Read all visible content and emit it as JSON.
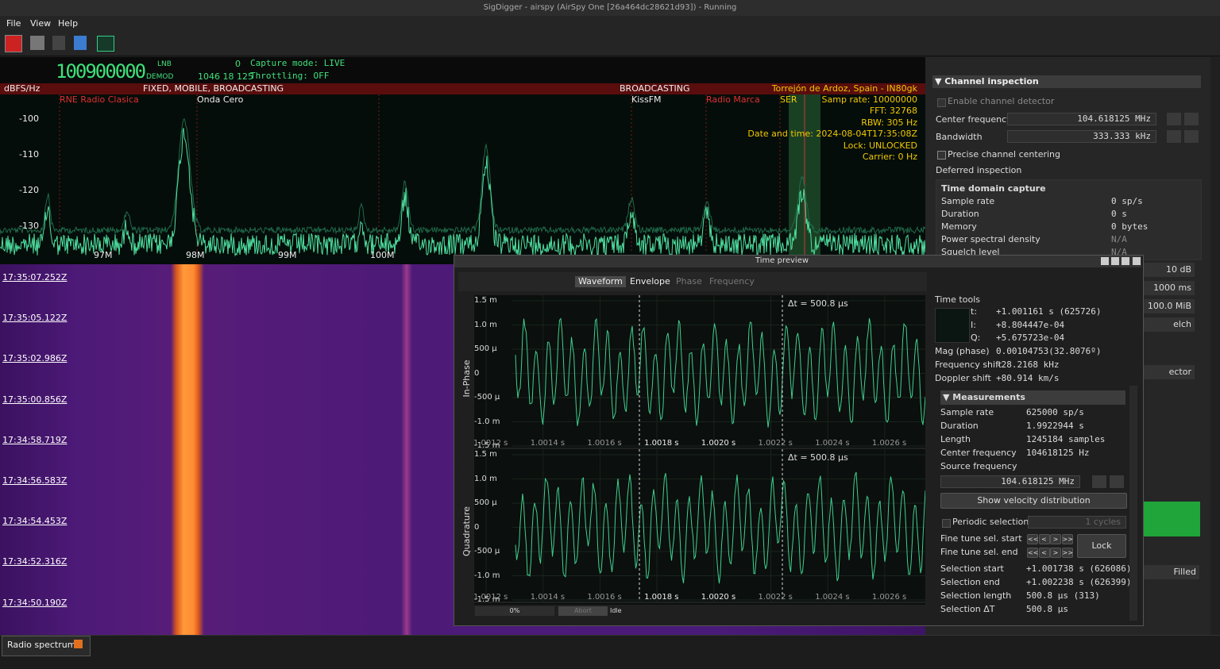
{
  "window": {
    "title": "SigDigger - airspy (AirSpy One [26a464dc28621d93]) - Running"
  },
  "menu": [
    "File",
    "View",
    "Help"
  ],
  "receiver": {
    "frequency": "100900000",
    "lnb_label": "LNB",
    "lnb_value": "0",
    "demod_label": "DEMOD",
    "demod_value": "1046 18 125",
    "capture_mode": "Capture mode: LIVE",
    "throttling": "Throttling: OFF"
  },
  "spectrum": {
    "y_unit": "dBFS/Hz",
    "yticks": [
      "-100",
      "-110",
      "-120",
      "-130"
    ],
    "xticks": [
      "97M",
      "98M",
      "99M",
      "100M"
    ],
    "bands": [
      "FIXED, MOBILE, BROADCASTING",
      "BROADCASTING"
    ],
    "stations": [
      "RNE Radio Clasica",
      "Onda Cero",
      "KissFM",
      "Radio Marca",
      "SER"
    ],
    "info": [
      "Torrejón de Ardoz, Spain - IN80gk",
      "Samp rate: 10000000",
      "FFT: 32768",
      "RBW: 305 Hz",
      "Date and time: 2024-08-04T17:35:08Z",
      "Lock: UNLOCKED",
      "Carrier: 0 Hz"
    ]
  },
  "waterfall": {
    "timestamps": [
      "17:35:07.252Z",
      "17:35:05.122Z",
      "17:35:02.986Z",
      "17:35:00.856Z",
      "17:34:58.719Z",
      "17:34:56.583Z",
      "17:34:54.453Z",
      "17:34:52.316Z",
      "17:34:50.190Z"
    ]
  },
  "channel_inspection": {
    "title": "▼ Channel inspection",
    "enable_detector": "Enable channel detector",
    "center_frequency_label": "Center frequency",
    "center_frequency": "104.618125 MHz",
    "bandwidth_label": "Bandwidth",
    "bandwidth": "333.333 kHz",
    "precise_centering": "Precise channel centering",
    "deferred": "Deferred inspection",
    "capture": {
      "title": "Time domain capture",
      "rows": [
        [
          "Sample rate",
          "0 sp/s"
        ],
        [
          "Duration",
          "0 s"
        ],
        [
          "Memory",
          "0 bytes"
        ],
        [
          "Power spectral density",
          "N/A"
        ],
        [
          "Squelch level",
          "N/A"
        ]
      ]
    },
    "hidden_widgets": [
      "10 dB",
      "1000 ms",
      "100.0 MiB",
      "elch",
      "ector",
      "Filled"
    ]
  },
  "time_preview": {
    "title": "Time preview",
    "tabs": [
      "Waveform",
      "Envelope",
      "Phase",
      "Frequency"
    ],
    "plots": [
      "In-Phase",
      "Quadrature"
    ],
    "yticks": [
      "1.5 m",
      "1.0 m",
      "500 µ",
      "0",
      "-500 µ",
      "-1.0 m",
      "-1.5 m"
    ],
    "xticks": [
      "1.0012 s",
      "1.0014 s",
      "1.0016 s",
      "1.0018 s",
      "1.0020 s",
      "1.0022 s",
      "1.0024 s",
      "1.0026 s"
    ],
    "delta": "Δt = 500.8 µs",
    "progress": "0%",
    "abort": "Abort",
    "status": "Idle",
    "time_tools": {
      "title": "Time tools",
      "rows": [
        [
          "t:",
          "+1.001161 s (625726)"
        ],
        [
          "I:",
          "+8.804447e-04"
        ],
        [
          "Q:",
          "+5.675723e-04"
        ]
      ],
      "mag_label": "Mag (phase)",
      "mag": "0.00104753(32.8076º)",
      "freq_shift_label": "Frequency shift",
      "freq_shift": "-28.2168 kHz",
      "doppler_label": "Doppler shift",
      "doppler": "+80.914 km/s"
    },
    "measurements": {
      "title": "▼ Measurements",
      "rows": [
        [
          "Sample rate",
          "625000 sp/s"
        ],
        [
          "Duration",
          "1.9922944 s"
        ],
        [
          "Length",
          "1245184 samples"
        ],
        [
          "Center frequency",
          "104618125 Hz"
        ]
      ],
      "source_frequency_label": "Source frequency",
      "source_frequency": "104.618125 MHz",
      "velocity_button": "Show velocity distribution",
      "periodic": "Periodic selection",
      "cycles": "1 cycles",
      "fine_start": "Fine tune sel. start",
      "fine_end": "Fine tune sel. end",
      "fine_buttons": [
        "<<",
        "<",
        ">",
        ">>"
      ],
      "lock": "Lock",
      "selection": [
        [
          "Selection start",
          "+1.001738 s (626086)"
        ],
        [
          "Selection end",
          "+1.002238 s (626399)"
        ],
        [
          "Selection length",
          "500.8 µs (313)"
        ],
        [
          "Selection ΔT",
          "500.8 µs"
        ]
      ]
    }
  },
  "tabs": [
    "Radio spectrum"
  ]
}
